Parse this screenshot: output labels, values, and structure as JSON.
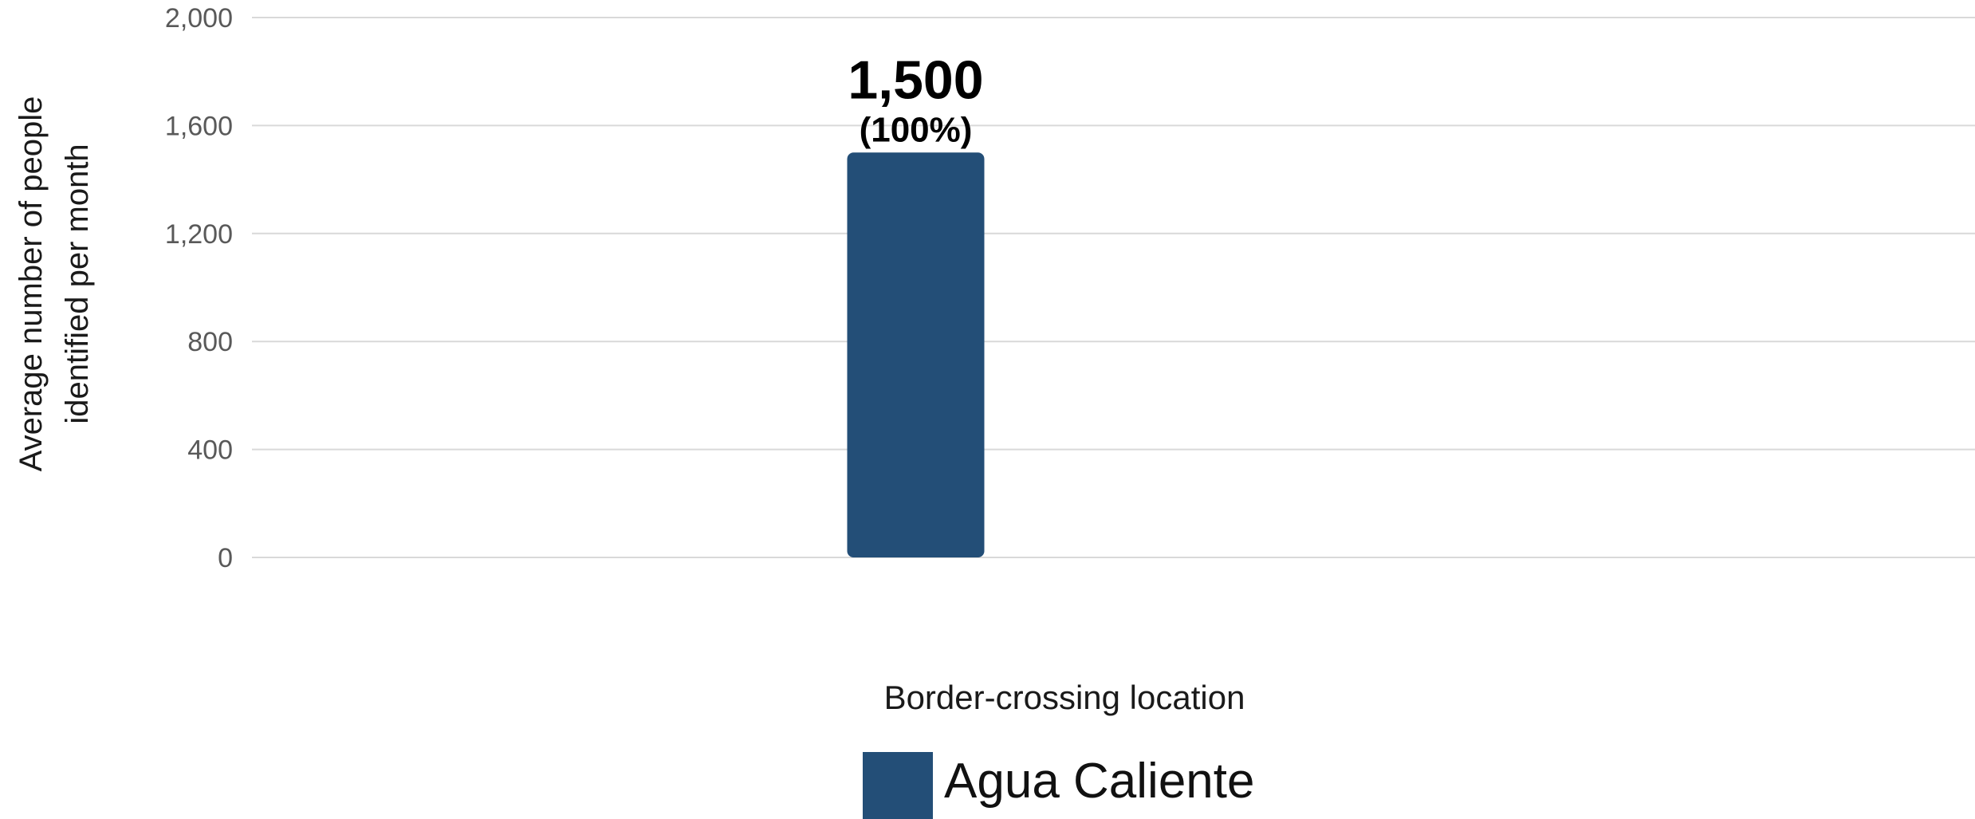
{
  "chart_data": {
    "type": "bar",
    "categories": [
      "Agua Caliente"
    ],
    "series": [
      {
        "name": "Agua Caliente",
        "values": [
          1500
        ],
        "labels": [
          "1,500"
        ],
        "percent_labels": [
          "(100%)"
        ],
        "color": "#234e77"
      }
    ],
    "xlabel": "Border-crossing location",
    "ylabel_lines": [
      "Average number of people",
      "identified per month"
    ],
    "ylim": [
      0,
      2000
    ],
    "yticks": [
      0,
      400,
      800,
      1200,
      1600,
      2000
    ],
    "ytick_labels": [
      "0",
      "400",
      "800",
      "1,200",
      "1,600",
      "2,000"
    ],
    "grid": true,
    "gridline_color": "#d9d9d9",
    "legend_position": "bottom"
  }
}
